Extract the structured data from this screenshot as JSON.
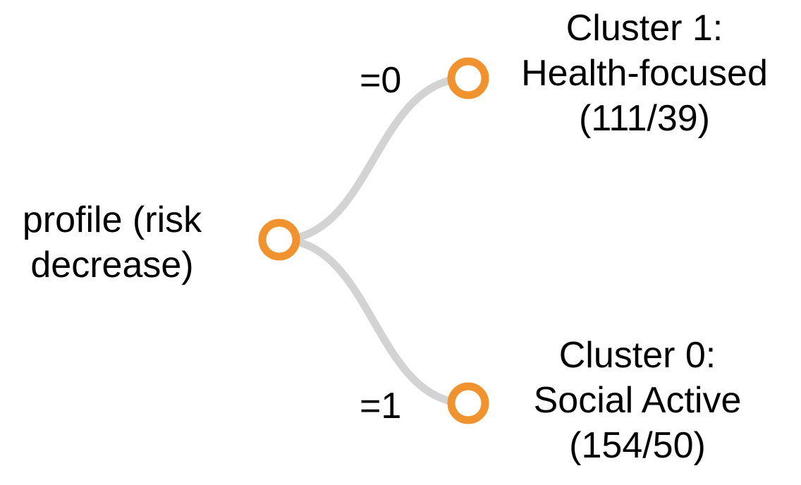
{
  "tree": {
    "colors": {
      "link": "#d3d3d3",
      "node_stroke": "#f0922e",
      "node_fill": "#ffffff"
    },
    "root": {
      "label_lines": [
        "profile (risk",
        "decrease)"
      ]
    },
    "edges": [
      {
        "label": "=0"
      },
      {
        "label": "=1"
      }
    ],
    "leaves": [
      {
        "label_lines": [
          "Cluster 1:",
          "Health-focused",
          "(111/39)"
        ]
      },
      {
        "label_lines": [
          "Cluster 0:",
          "Social Active",
          "(154/50)"
        ]
      }
    ]
  }
}
